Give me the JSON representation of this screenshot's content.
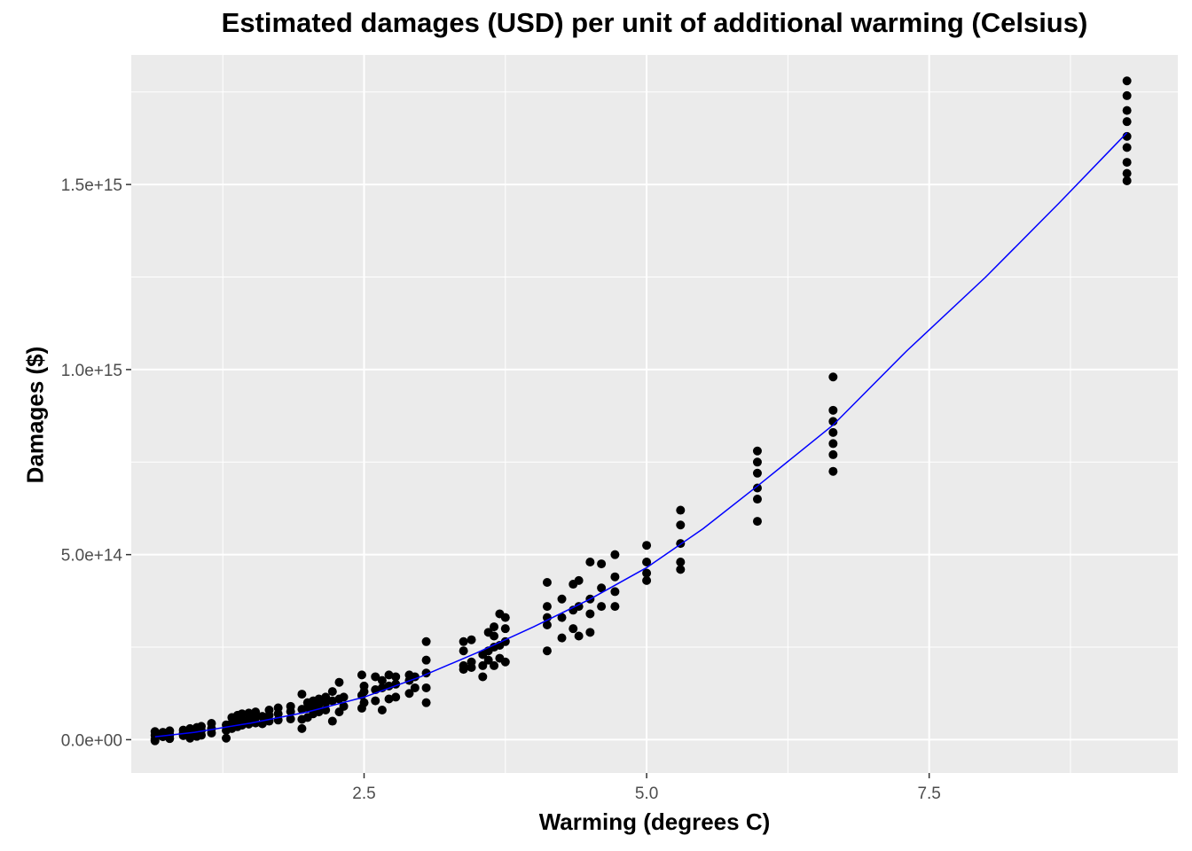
{
  "chart_data": {
    "type": "scatter",
    "title": "Estimated damages (USD) per unit of additional warming (Celsius)",
    "xlabel": "Warming (degrees C)",
    "ylabel": "Damages ($)",
    "xlim": [
      0.44,
      9.7
    ],
    "ylim": [
      -90000000000000.0,
      1850000000000000.0
    ],
    "x_ticks": [
      {
        "value": 2.5,
        "label": "2.5"
      },
      {
        "value": 5.0,
        "label": "5.0"
      },
      {
        "value": 7.5,
        "label": "7.5"
      }
    ],
    "y_ticks": [
      {
        "value": 0,
        "label": "0.0e+00"
      },
      {
        "value": 500000000000000.0,
        "label": "5.0e+14"
      },
      {
        "value": 1000000000000000.0,
        "label": "1.0e+15"
      },
      {
        "value": 1500000000000000.0,
        "label": "1.5e+15"
      }
    ],
    "grid": true,
    "legend": "none",
    "colors": {
      "panel_background": "#EBEBEB",
      "grid": "#FFFFFF",
      "points": "#000000",
      "fit_line": "#0000FF",
      "tick_label": "#4D4D4D"
    },
    "series": [
      {
        "type": "scatter",
        "points": [
          [
            0.65,
            1000000000000.0
          ],
          [
            0.65,
            12000000000000.0
          ],
          [
            0.65,
            22000000000000.0
          ],
          [
            0.65,
            -3000000000000.0
          ],
          [
            0.72,
            8000000000000.0
          ],
          [
            0.72,
            20000000000000.0
          ],
          [
            0.72,
            16000000000000.0
          ],
          [
            0.78,
            13000000000000.0
          ],
          [
            0.78,
            24000000000000.0
          ],
          [
            0.78,
            3000000000000.0
          ],
          [
            0.9,
            11000000000000.0
          ],
          [
            0.9,
            26000000000000.0
          ],
          [
            0.9,
            18000000000000.0
          ],
          [
            0.96,
            16000000000000.0
          ],
          [
            0.96,
            30000000000000.0
          ],
          [
            0.96,
            4000000000000.0
          ],
          [
            1.02,
            21000000000000.0
          ],
          [
            1.02,
            33000000000000.0
          ],
          [
            1.02,
            9000000000000.0
          ],
          [
            1.06,
            25000000000000.0
          ],
          [
            1.06,
            36000000000000.0
          ],
          [
            1.06,
            12000000000000.0
          ],
          [
            1.15,
            30000000000000.0
          ],
          [
            1.15,
            44000000000000.0
          ],
          [
            1.15,
            18000000000000.0
          ],
          [
            1.28,
            4000000000000.0
          ],
          [
            1.28,
            40000000000000.0
          ],
          [
            1.28,
            25000000000000.0
          ],
          [
            1.33,
            45000000000000.0
          ],
          [
            1.33,
            60000000000000.0
          ],
          [
            1.33,
            30000000000000.0
          ],
          [
            1.38,
            50000000000000.0
          ],
          [
            1.38,
            66000000000000.0
          ],
          [
            1.38,
            35000000000000.0
          ],
          [
            1.42,
            53000000000000.0
          ],
          [
            1.42,
            70000000000000.0
          ],
          [
            1.42,
            39000000000000.0
          ],
          [
            1.48,
            56000000000000.0
          ],
          [
            1.48,
            72000000000000.0
          ],
          [
            1.48,
            42000000000000.0
          ],
          [
            1.54,
            60000000000000.0
          ],
          [
            1.54,
            75000000000000.0
          ],
          [
            1.54,
            45000000000000.0
          ],
          [
            1.6,
            63000000000000.0
          ],
          [
            1.6,
            43000000000000.0
          ],
          [
            1.66,
            66000000000000.0
          ],
          [
            1.66,
            80000000000000.0
          ],
          [
            1.66,
            50000000000000.0
          ],
          [
            1.74,
            70000000000000.0
          ],
          [
            1.74,
            86000000000000.0
          ],
          [
            1.74,
            53000000000000.0
          ],
          [
            1.85,
            76000000000000.0
          ],
          [
            1.85,
            90000000000000.0
          ],
          [
            1.85,
            56000000000000.0
          ],
          [
            1.95,
            82000000000000.0
          ],
          [
            1.95,
            30000000000000.0
          ],
          [
            1.95,
            123000000000000.0
          ],
          [
            1.95,
            55000000000000.0
          ],
          [
            2.0,
            88000000000000.0
          ],
          [
            2.0,
            60000000000000.0
          ],
          [
            2.0,
            100000000000000.0
          ],
          [
            2.05,
            90000000000000.0
          ],
          [
            2.05,
            70000000000000.0
          ],
          [
            2.05,
            105000000000000.0
          ],
          [
            2.1,
            95000000000000.0
          ],
          [
            2.1,
            75000000000000.0
          ],
          [
            2.1,
            110000000000000.0
          ],
          [
            2.16,
            100000000000000.0
          ],
          [
            2.16,
            80000000000000.0
          ],
          [
            2.16,
            115000000000000.0
          ],
          [
            2.22,
            105000000000000.0
          ],
          [
            2.22,
            50000000000000.0
          ],
          [
            2.22,
            130000000000000.0
          ],
          [
            2.28,
            110000000000000.0
          ],
          [
            2.28,
            75000000000000.0
          ],
          [
            2.28,
            155000000000000.0
          ],
          [
            2.32,
            115000000000000.0
          ],
          [
            2.32,
            90000000000000.0
          ],
          [
            2.48,
            120000000000000.0
          ],
          [
            2.48,
            85000000000000.0
          ],
          [
            2.48,
            175000000000000.0
          ],
          [
            2.5,
            130000000000000.0
          ],
          [
            2.5,
            145000000000000.0
          ],
          [
            2.5,
            100000000000000.0
          ],
          [
            2.6,
            135000000000000.0
          ],
          [
            2.6,
            170000000000000.0
          ],
          [
            2.6,
            105000000000000.0
          ],
          [
            2.66,
            140000000000000.0
          ],
          [
            2.66,
            160000000000000.0
          ],
          [
            2.66,
            80000000000000.0
          ],
          [
            2.72,
            145000000000000.0
          ],
          [
            2.72,
            175000000000000.0
          ],
          [
            2.72,
            110000000000000.0
          ],
          [
            2.78,
            150000000000000.0
          ],
          [
            2.78,
            170000000000000.0
          ],
          [
            2.78,
            115000000000000.0
          ],
          [
            2.9,
            160000000000000.0
          ],
          [
            2.9,
            175000000000000.0
          ],
          [
            2.9,
            125000000000000.0
          ],
          [
            2.95,
            170000000000000.0
          ],
          [
            2.95,
            140000000000000.0
          ],
          [
            3.05,
            180000000000000.0
          ],
          [
            3.05,
            265000000000000.0
          ],
          [
            3.05,
            100000000000000.0
          ],
          [
            3.05,
            140000000000000.0
          ],
          [
            3.05,
            215000000000000.0
          ],
          [
            3.38,
            200000000000000.0
          ],
          [
            3.38,
            265000000000000.0
          ],
          [
            3.38,
            190000000000000.0
          ],
          [
            3.38,
            240000000000000.0
          ],
          [
            3.45,
            210000000000000.0
          ],
          [
            3.45,
            270000000000000.0
          ],
          [
            3.45,
            195000000000000.0
          ],
          [
            3.55,
            230000000000000.0
          ],
          [
            3.55,
            200000000000000.0
          ],
          [
            3.55,
            170000000000000.0
          ],
          [
            3.6,
            240000000000000.0
          ],
          [
            3.6,
            290000000000000.0
          ],
          [
            3.6,
            215000000000000.0
          ],
          [
            3.65,
            250000000000000.0
          ],
          [
            3.65,
            280000000000000.0
          ],
          [
            3.65,
            200000000000000.0
          ],
          [
            3.65,
            305000000000000.0
          ],
          [
            3.7,
            255000000000000.0
          ],
          [
            3.7,
            340000000000000.0
          ],
          [
            3.7,
            220000000000000.0
          ],
          [
            3.75,
            265000000000000.0
          ],
          [
            3.75,
            330000000000000.0
          ],
          [
            3.75,
            210000000000000.0
          ],
          [
            3.75,
            300000000000000.0
          ],
          [
            4.12,
            310000000000000.0
          ],
          [
            4.12,
            425000000000000.0
          ],
          [
            4.12,
            240000000000000.0
          ],
          [
            4.12,
            360000000000000.0
          ],
          [
            4.12,
            330000000000000.0
          ],
          [
            4.25,
            330000000000000.0
          ],
          [
            4.25,
            275000000000000.0
          ],
          [
            4.25,
            380000000000000.0
          ],
          [
            4.35,
            350000000000000.0
          ],
          [
            4.35,
            420000000000000.0
          ],
          [
            4.35,
            300000000000000.0
          ],
          [
            4.4,
            360000000000000.0
          ],
          [
            4.4,
            280000000000000.0
          ],
          [
            4.4,
            430000000000000.0
          ],
          [
            4.5,
            380000000000000.0
          ],
          [
            4.5,
            480000000000000.0
          ],
          [
            4.5,
            290000000000000.0
          ],
          [
            4.5,
            340000000000000.0
          ],
          [
            4.6,
            410000000000000.0
          ],
          [
            4.6,
            475000000000000.0
          ],
          [
            4.6,
            360000000000000.0
          ],
          [
            4.72,
            440000000000000.0
          ],
          [
            4.72,
            500000000000000.0
          ],
          [
            4.72,
            360000000000000.0
          ],
          [
            4.72,
            400000000000000.0
          ],
          [
            5.0,
            480000000000000.0
          ],
          [
            5.0,
            525000000000000.0
          ],
          [
            5.0,
            430000000000000.0
          ],
          [
            5.0,
            450000000000000.0
          ],
          [
            5.3,
            530000000000000.0
          ],
          [
            5.3,
            620000000000000.0
          ],
          [
            5.3,
            460000000000000.0
          ],
          [
            5.3,
            580000000000000.0
          ],
          [
            5.3,
            480000000000000.0
          ],
          [
            5.98,
            680000000000000.0
          ],
          [
            5.98,
            780000000000000.0
          ],
          [
            5.98,
            590000000000000.0
          ],
          [
            5.98,
            720000000000000.0
          ],
          [
            5.98,
            650000000000000.0
          ],
          [
            5.98,
            750000000000000.0
          ],
          [
            6.65,
            830000000000000.0
          ],
          [
            6.65,
            980000000000000.0
          ],
          [
            6.65,
            725000000000000.0
          ],
          [
            6.65,
            890000000000000.0
          ],
          [
            6.65,
            770000000000000.0
          ],
          [
            6.65,
            800000000000000.0
          ],
          [
            6.65,
            860000000000000.0
          ],
          [
            9.25,
            1630000000000000.0
          ],
          [
            9.25,
            1780000000000000.0
          ],
          [
            9.25,
            1510000000000000.0
          ],
          [
            9.25,
            1700000000000000.0
          ],
          [
            9.25,
            1560000000000000.0
          ],
          [
            9.25,
            1740000000000000.0
          ],
          [
            9.25,
            1600000000000000.0
          ],
          [
            9.25,
            1670000000000000.0
          ],
          [
            9.25,
            1530000000000000.0
          ]
        ]
      },
      {
        "type": "line",
        "points": [
          [
            0.65,
            8000000000000.0
          ],
          [
            1.0,
            20000000000000.0
          ],
          [
            1.5,
            45000000000000.0
          ],
          [
            2.0,
            75000000000000.0
          ],
          [
            2.5,
            115000000000000.0
          ],
          [
            3.0,
            170000000000000.0
          ],
          [
            3.5,
            235000000000000.0
          ],
          [
            4.0,
            305000000000000.0
          ],
          [
            4.5,
            380000000000000.0
          ],
          [
            5.0,
            465000000000000.0
          ],
          [
            5.5,
            570000000000000.0
          ],
          [
            6.0,
            690000000000000.0
          ],
          [
            6.65,
            850000000000000.0
          ],
          [
            7.3,
            1050000000000000.0
          ],
          [
            8.0,
            1250000000000000.0
          ],
          [
            8.65,
            1450000000000000.0
          ],
          [
            9.25,
            1640000000000000.0
          ]
        ]
      }
    ]
  }
}
